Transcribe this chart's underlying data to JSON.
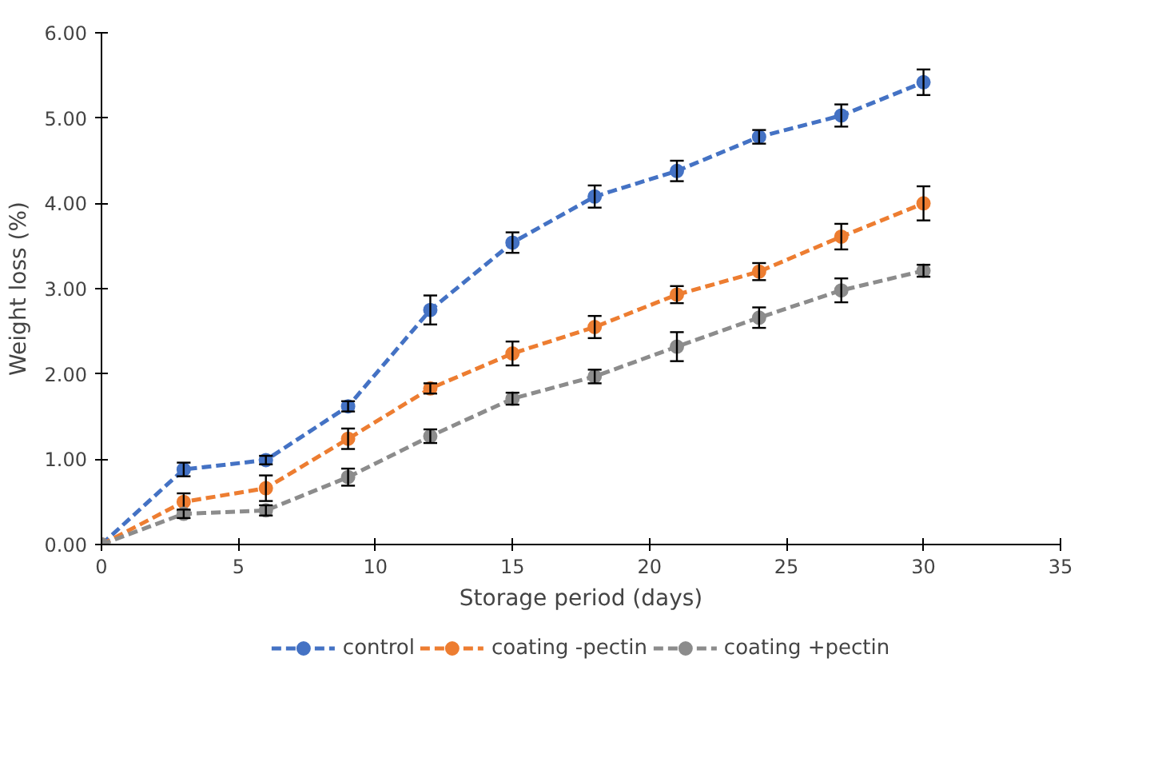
{
  "chart_data": {
    "type": "line",
    "xlabel": "Storage period (days)",
    "ylabel": "Weight loss (%)",
    "x": [
      0,
      3,
      6,
      9,
      12,
      15,
      18,
      21,
      24,
      27,
      30
    ],
    "xlim": [
      0,
      35
    ],
    "xticks": [
      0,
      5,
      10,
      15,
      20,
      25,
      30,
      35
    ],
    "ylim": [
      0,
      6
    ],
    "yticks": [
      {
        "value": 0,
        "label": "0.00"
      },
      {
        "value": 1,
        "label": "1.00"
      },
      {
        "value": 2,
        "label": "2.00"
      },
      {
        "value": 3,
        "label": "3.00"
      },
      {
        "value": 4,
        "label": "4.00"
      },
      {
        "value": 5,
        "label": "5.00"
      },
      {
        "value": 6,
        "label": "6.00"
      }
    ],
    "grid": false,
    "legend": "bottom",
    "marker": "circle",
    "line_style": "dashed",
    "series": [
      {
        "name": "control",
        "color": "#4472c4",
        "values": [
          0,
          0.88,
          0.99,
          1.62,
          2.75,
          3.54,
          4.08,
          4.38,
          4.78,
          5.03,
          5.42
        ],
        "errors": [
          null,
          0.08,
          0.05,
          0.06,
          0.17,
          0.12,
          0.13,
          0.12,
          0.08,
          0.13,
          0.15
        ]
      },
      {
        "name": "coating -pectin",
        "color": "#ed7d31",
        "values": [
          0,
          0.5,
          0.66,
          1.24,
          1.83,
          2.24,
          2.55,
          2.93,
          3.2,
          3.61,
          4.0
        ],
        "errors": [
          null,
          0.1,
          0.15,
          0.12,
          0.06,
          0.14,
          0.13,
          0.1,
          0.1,
          0.15,
          0.2
        ]
      },
      {
        "name": "coating +pectin",
        "color": "#8c8c8c",
        "values": [
          0,
          0.36,
          0.4,
          0.79,
          1.27,
          1.71,
          1.97,
          2.32,
          2.66,
          2.98,
          3.21
        ],
        "errors": [
          null,
          0.05,
          0.06,
          0.1,
          0.08,
          0.07,
          0.08,
          0.17,
          0.12,
          0.14,
          0.07
        ]
      }
    ]
  }
}
